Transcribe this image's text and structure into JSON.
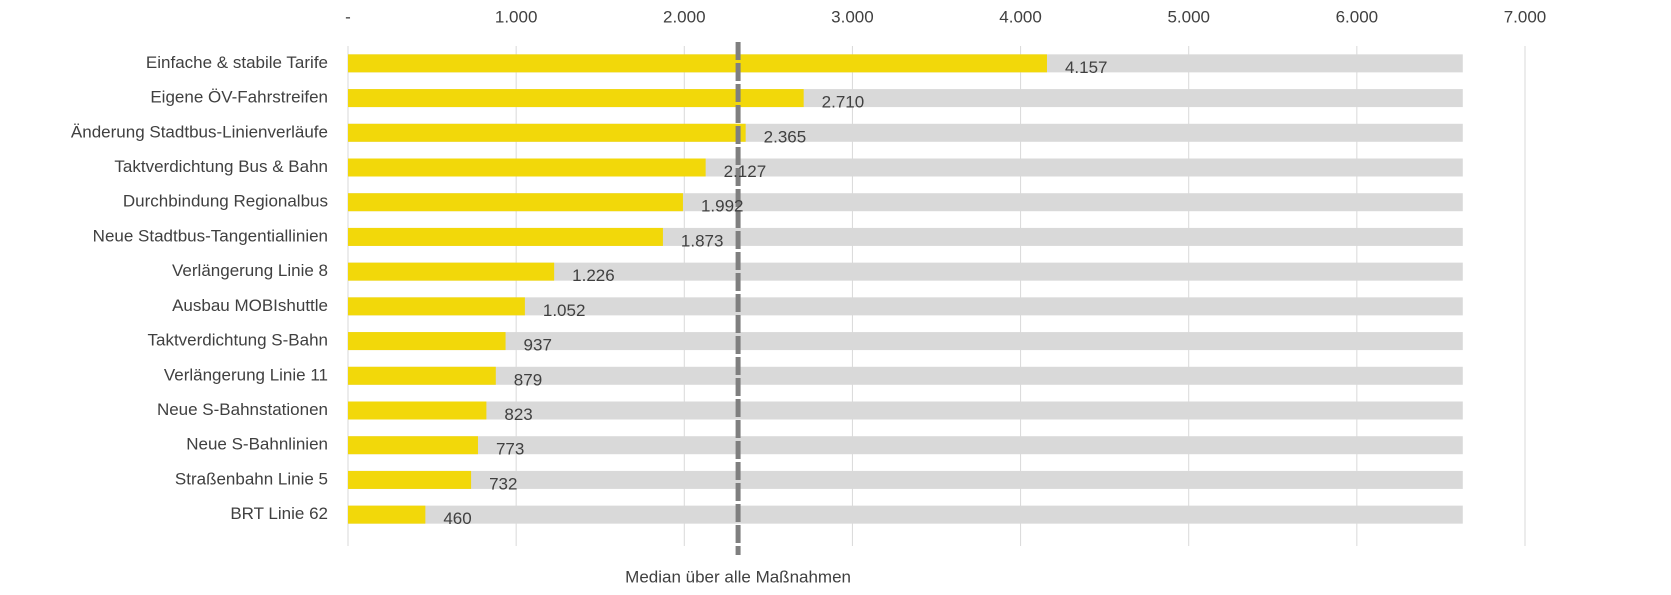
{
  "chart_data": {
    "type": "hbar",
    "categories": [
      "Einfache & stabile Tarife",
      "Eigene ÖV-Fahrstreifen",
      "Änderung Stadtbus-Linienverläufe",
      "Taktverdichtung Bus & Bahn",
      "Durchbindung Regionalbus",
      "Neue Stadtbus-Tangentiallinien",
      "Verlängerung Linie 8",
      "Ausbau MOBIshuttle",
      "Taktverdichtung S-Bahn",
      "Verlängerung Linie 11",
      "Neue S-Bahnstationen",
      "Neue S-Bahnlinien",
      "Straßenbahn Linie 5",
      "BRT Linie 62"
    ],
    "series": [
      {
        "color": "#d9d9d9",
        "values": [
          6630,
          6630,
          6630,
          6630,
          6630,
          6630,
          6630,
          6630,
          6630,
          6630,
          6630,
          6630,
          6630,
          6630
        ]
      },
      {
        "color": "#f2d80a",
        "values": [
          4157,
          2710,
          2365,
          2127,
          1992,
          1873,
          1226,
          1052,
          937,
          879,
          823,
          773,
          732,
          460
        ],
        "value_labels": [
          "4.157",
          "2.710",
          "2.365",
          "2.127",
          "1.992",
          "1.873",
          "1.226",
          "1.052",
          "937",
          "879",
          "823",
          "773",
          "732",
          "460"
        ]
      }
    ],
    "xlim": [
      0,
      7000
    ],
    "xticks": [
      {
        "value": 0,
        "label": "-"
      },
      {
        "value": 1000,
        "label": "1.000"
      },
      {
        "value": 2000,
        "label": "2.000"
      },
      {
        "value": 3000,
        "label": "3.000"
      },
      {
        "value": 4000,
        "label": "4.000"
      },
      {
        "value": 5000,
        "label": "5.000"
      },
      {
        "value": 6000,
        "label": "6.000"
      },
      {
        "value": 7000,
        "label": "7.000"
      }
    ],
    "grid": true,
    "median": {
      "value": 2320,
      "label": "Median über alle Maßnahmen",
      "color": "#7f7f7f"
    }
  }
}
